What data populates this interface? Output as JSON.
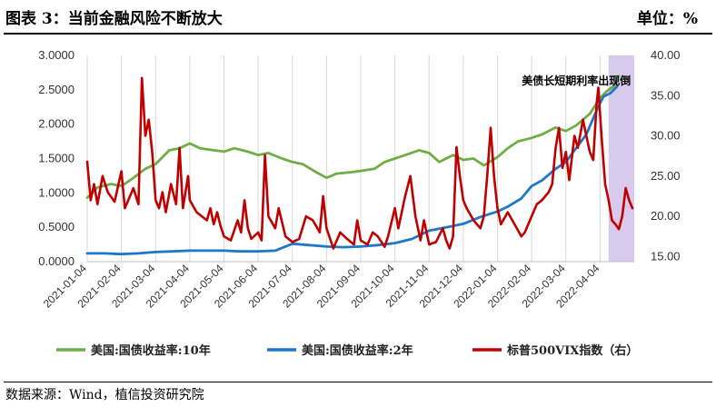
{
  "header": {
    "title": "图表 3：当前金融风险不断放大",
    "unit": "单位：%"
  },
  "source": "数据来源：Wind，植信投资研究院",
  "chart_data": {
    "type": "line",
    "annotation": "美债长短期利率出现倒",
    "x_ticks": [
      "2021-01-04",
      "2021-02-04",
      "2021-03-04",
      "2021-04-04",
      "2021-05-04",
      "2021-06-04",
      "2021-07-04",
      "2021-08-04",
      "2021-09-04",
      "2021-10-04",
      "2021-11-04",
      "2021-12-04",
      "2022-01-04",
      "2022-02-04",
      "2022-03-04",
      "2022-04-04"
    ],
    "x_range": [
      0,
      16
    ],
    "y_left": {
      "ticks": [
        "0.0000",
        "0.5000",
        "1.0000",
        "1.5000",
        "2.0000",
        "2.5000",
        "3.0000"
      ],
      "range": [
        0,
        3
      ]
    },
    "y_right": {
      "ticks": [
        "15.00",
        "20.00",
        "25.00",
        "30.00",
        "35.00",
        "40.00"
      ],
      "range": [
        14.36,
        40.0
      ]
    },
    "grid": "vertical",
    "legend_position": "bottom",
    "series": [
      {
        "name": "美国:国债收益率:10年",
        "axis": "left",
        "color": "#70ad47",
        "points": [
          [
            0,
            0.93
          ],
          [
            0.3,
            1.08
          ],
          [
            0.7,
            1.13
          ],
          [
            1.0,
            1.1
          ],
          [
            1.3,
            1.2
          ],
          [
            1.7,
            1.35
          ],
          [
            2.0,
            1.42
          ],
          [
            2.4,
            1.62
          ],
          [
            2.7,
            1.65
          ],
          [
            3.0,
            1.72
          ],
          [
            3.3,
            1.65
          ],
          [
            3.7,
            1.62
          ],
          [
            4.0,
            1.6
          ],
          [
            4.3,
            1.65
          ],
          [
            4.7,
            1.6
          ],
          [
            5.0,
            1.55
          ],
          [
            5.3,
            1.58
          ],
          [
            5.7,
            1.5
          ],
          [
            6.0,
            1.45
          ],
          [
            6.3,
            1.42
          ],
          [
            6.7,
            1.3
          ],
          [
            7.0,
            1.22
          ],
          [
            7.3,
            1.28
          ],
          [
            7.7,
            1.3
          ],
          [
            8.0,
            1.32
          ],
          [
            8.4,
            1.35
          ],
          [
            8.7,
            1.45
          ],
          [
            9.0,
            1.5
          ],
          [
            9.3,
            1.55
          ],
          [
            9.7,
            1.62
          ],
          [
            10.0,
            1.58
          ],
          [
            10.3,
            1.45
          ],
          [
            10.7,
            1.55
          ],
          [
            11.0,
            1.48
          ],
          [
            11.3,
            1.5
          ],
          [
            11.6,
            1.4
          ],
          [
            12.0,
            1.52
          ],
          [
            12.3,
            1.65
          ],
          [
            12.6,
            1.75
          ],
          [
            13.0,
            1.8
          ],
          [
            13.3,
            1.85
          ],
          [
            13.7,
            1.95
          ],
          [
            14.0,
            1.9
          ],
          [
            14.3,
            1.98
          ],
          [
            14.7,
            2.15
          ],
          [
            15.0,
            2.38
          ],
          [
            15.2,
            2.48
          ],
          [
            15.4,
            2.55
          ],
          [
            15.55,
            2.7
          ]
        ]
      },
      {
        "name": "美国:国债收益率:2年",
        "axis": "left",
        "color": "#1f77c9",
        "points": [
          [
            0,
            0.12
          ],
          [
            0.5,
            0.12
          ],
          [
            1.0,
            0.11
          ],
          [
            1.5,
            0.12
          ],
          [
            2.0,
            0.14
          ],
          [
            2.5,
            0.15
          ],
          [
            3.0,
            0.16
          ],
          [
            3.5,
            0.16
          ],
          [
            4.0,
            0.16
          ],
          [
            4.5,
            0.15
          ],
          [
            5.0,
            0.15
          ],
          [
            5.5,
            0.16
          ],
          [
            6.0,
            0.26
          ],
          [
            6.5,
            0.24
          ],
          [
            7.0,
            0.22
          ],
          [
            7.5,
            0.21
          ],
          [
            8.0,
            0.22
          ],
          [
            8.5,
            0.24
          ],
          [
            9.0,
            0.27
          ],
          [
            9.5,
            0.33
          ],
          [
            10.0,
            0.45
          ],
          [
            10.5,
            0.5
          ],
          [
            11.0,
            0.55
          ],
          [
            11.5,
            0.65
          ],
          [
            12.0,
            0.73
          ],
          [
            12.3,
            0.8
          ],
          [
            12.7,
            0.92
          ],
          [
            13.0,
            1.1
          ],
          [
            13.3,
            1.18
          ],
          [
            13.7,
            1.35
          ],
          [
            14.0,
            1.45
          ],
          [
            14.3,
            1.65
          ],
          [
            14.6,
            1.85
          ],
          [
            14.9,
            2.2
          ],
          [
            15.1,
            2.4
          ],
          [
            15.3,
            2.45
          ],
          [
            15.5,
            2.55
          ]
        ]
      },
      {
        "name": "标普500VIX指数（右）",
        "axis": "right",
        "color": "#c00000",
        "points": [
          [
            0,
            26.8
          ],
          [
            0.1,
            22.0
          ],
          [
            0.2,
            24.0
          ],
          [
            0.3,
            21.5
          ],
          [
            0.45,
            25.0
          ],
          [
            0.6,
            23.0
          ],
          [
            0.8,
            21.8
          ],
          [
            1.0,
            25.6
          ],
          [
            1.1,
            21.0
          ],
          [
            1.2,
            22.0
          ],
          [
            1.35,
            23.5
          ],
          [
            1.5,
            21.5
          ],
          [
            1.6,
            37.2
          ],
          [
            1.7,
            30.0
          ],
          [
            1.8,
            32.0
          ],
          [
            1.9,
            28.0
          ],
          [
            2.0,
            22.0
          ],
          [
            2.1,
            21.0
          ],
          [
            2.2,
            23.0
          ],
          [
            2.3,
            20.5
          ],
          [
            2.45,
            24.0
          ],
          [
            2.6,
            21.5
          ],
          [
            2.7,
            28.5
          ],
          [
            2.8,
            21.0
          ],
          [
            2.95,
            25.0
          ],
          [
            3.0,
            22.0
          ],
          [
            3.2,
            20.5
          ],
          [
            3.5,
            19.5
          ],
          [
            3.6,
            21.0
          ],
          [
            3.7,
            19.0
          ],
          [
            3.8,
            20.5
          ],
          [
            3.9,
            18.8
          ],
          [
            4.0,
            17.5
          ],
          [
            4.2,
            17.0
          ],
          [
            4.4,
            19.5
          ],
          [
            4.5,
            18.0
          ],
          [
            4.6,
            22.0
          ],
          [
            4.7,
            18.5
          ],
          [
            4.8,
            17.2
          ],
          [
            5.0,
            18.0
          ],
          [
            5.1,
            17.0
          ],
          [
            5.2,
            27.6
          ],
          [
            5.3,
            20.0
          ],
          [
            5.5,
            18.5
          ],
          [
            5.6,
            21.0
          ],
          [
            5.8,
            17.5
          ],
          [
            6.0,
            16.8
          ],
          [
            6.2,
            17.2
          ],
          [
            6.4,
            20.0
          ],
          [
            6.6,
            19.5
          ],
          [
            6.8,
            18.0
          ],
          [
            6.9,
            22.5
          ],
          [
            7.0,
            18.5
          ],
          [
            7.2,
            16.0
          ],
          [
            7.4,
            18.0
          ],
          [
            7.6,
            17.2
          ],
          [
            7.8,
            16.5
          ],
          [
            7.9,
            19.5
          ],
          [
            8.0,
            17.0
          ],
          [
            8.2,
            16.5
          ],
          [
            8.35,
            18.0
          ],
          [
            8.5,
            17.5
          ],
          [
            8.7,
            16.2
          ],
          [
            8.8,
            17.5
          ],
          [
            9.0,
            21.0
          ],
          [
            9.1,
            18.5
          ],
          [
            9.3,
            22.5
          ],
          [
            9.45,
            25.0
          ],
          [
            9.6,
            20.0
          ],
          [
            9.75,
            17.0
          ],
          [
            9.85,
            19.5
          ],
          [
            10.0,
            16.5
          ],
          [
            10.2,
            16.8
          ],
          [
            10.4,
            18.5
          ],
          [
            10.5,
            17.0
          ],
          [
            10.6,
            16.0
          ],
          [
            10.7,
            17.5
          ],
          [
            10.8,
            28.6
          ],
          [
            10.9,
            25.0
          ],
          [
            11.0,
            22.0
          ],
          [
            11.1,
            21.0
          ],
          [
            11.3,
            19.5
          ],
          [
            11.5,
            18.5
          ],
          [
            11.6,
            20.0
          ],
          [
            11.7,
            25.0
          ],
          [
            11.8,
            31.0
          ],
          [
            11.9,
            25.0
          ],
          [
            12.0,
            21.0
          ],
          [
            12.1,
            19.0
          ],
          [
            12.3,
            20.5
          ],
          [
            12.5,
            19.0
          ],
          [
            12.7,
            17.5
          ],
          [
            12.8,
            18.0
          ],
          [
            13.0,
            20.0
          ],
          [
            13.15,
            21.5
          ],
          [
            13.3,
            22.0
          ],
          [
            13.5,
            23.0
          ],
          [
            13.6,
            24.0
          ],
          [
            13.7,
            28.5
          ],
          [
            13.8,
            31.0
          ],
          [
            13.9,
            26.0
          ],
          [
            14.0,
            28.0
          ],
          [
            14.1,
            24.5
          ],
          [
            14.25,
            30.0
          ],
          [
            14.35,
            28.5
          ],
          [
            14.5,
            32.0
          ],
          [
            14.6,
            30.0
          ],
          [
            14.7,
            28.0
          ],
          [
            14.8,
            27.0
          ],
          [
            14.9,
            34.0
          ],
          [
            14.95,
            36.0
          ],
          [
            15.05,
            29.5
          ],
          [
            15.15,
            24.0
          ],
          [
            15.25,
            22.0
          ],
          [
            15.35,
            19.5
          ],
          [
            15.45,
            19.0
          ],
          [
            15.55,
            18.4
          ],
          [
            15.65,
            20.0
          ],
          [
            15.75,
            23.5
          ],
          [
            15.85,
            22.0
          ],
          [
            15.95,
            21.0
          ]
        ]
      }
    ]
  }
}
